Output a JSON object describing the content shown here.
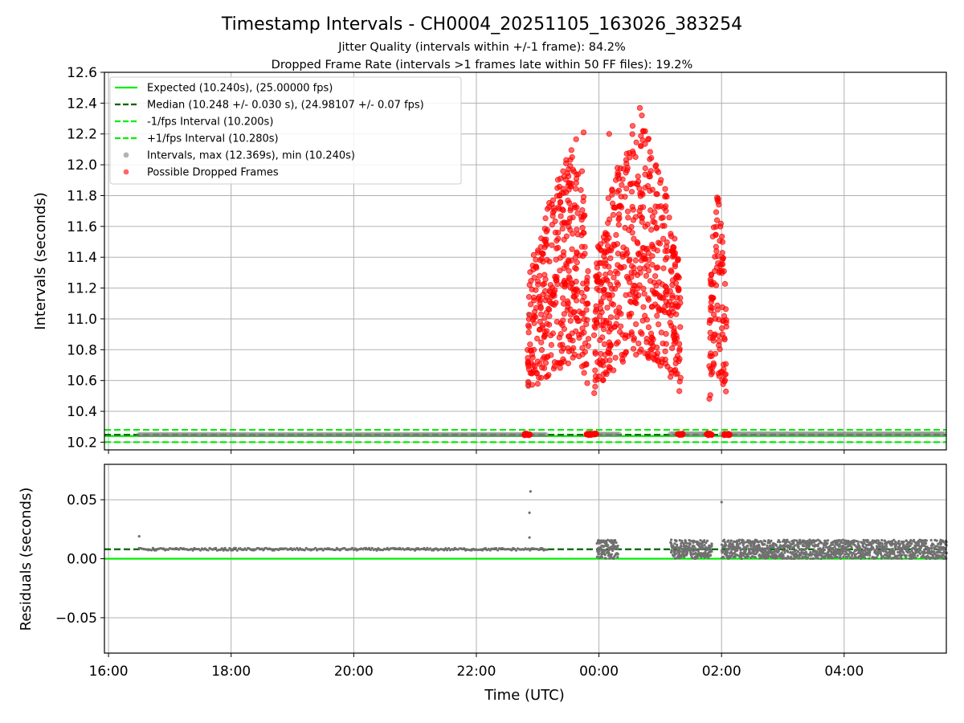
{
  "chart_data": [
    {
      "type": "scatter",
      "title": "Timestamp Intervals - CH0004_20251105_163026_383254",
      "subtitle_lines": [
        "Jitter Quality (intervals within +/-1 frame): 84.2%",
        "Dropped Frame Rate (intervals >1 frames late within 50 FF files): 19.2%"
      ],
      "xlabel": "",
      "ylabel": "Intervals (seconds)",
      "x_axis_type": "time",
      "xlim": [
        "15:56",
        "05:40"
      ],
      "x_ticks": [
        "16:00",
        "18:00",
        "20:00",
        "22:00",
        "00:00",
        "02:00",
        "04:00"
      ],
      "ylim": [
        10.15,
        12.6
      ],
      "y_ticks": [
        "10.2",
        "10.4",
        "10.6",
        "10.8",
        "11.0",
        "11.2",
        "11.4",
        "11.6",
        "11.8",
        "12.0",
        "12.2",
        "12.4",
        "12.6"
      ],
      "grid": true,
      "legend_position": "upper-left",
      "reference_lines": [
        {
          "name": "Expected (10.240s), (25.00000 fps)",
          "y": 10.24,
          "color": "#00ee00",
          "style": "solid"
        },
        {
          "name": "Median (10.248 +/- 0.030 s), (24.98107 +/- 0.07 fps)",
          "y": 10.248,
          "color": "#006400",
          "style": "dashed"
        },
        {
          "name": "-1/fps Interval (10.200s)",
          "y": 10.2,
          "color": "#00ee00",
          "style": "dashed"
        },
        {
          "name": "+1/fps Interval (10.280s)",
          "y": 10.28,
          "color": "#00ee00",
          "style": "dashed"
        }
      ],
      "series": [
        {
          "name": "Intervals, max (12.369s), min (10.240s)",
          "color": "#808080",
          "segments": [
            {
              "x_start": "16:30",
              "x_end": "23:10",
              "y": 10.249
            },
            {
              "x_start": "00:00",
              "x_end": "00:20",
              "y": 10.252
            },
            {
              "x_start": "01:10",
              "x_end": "01:50",
              "y": 10.254
            },
            {
              "x_start": "02:00",
              "x_end": "05:40",
              "y": 10.254
            }
          ],
          "points": [
            {
              "x": "22:51",
              "y": 11.03
            },
            {
              "x": "22:51",
              "y": 10.56
            },
            {
              "x": "22:51",
              "y": 10.59
            },
            {
              "x": "01:50",
              "y": 10.66
            }
          ]
        },
        {
          "name": "Possible Dropped Frames",
          "color": "#ff0000",
          "clusters": [
            {
              "x_start": "22:50",
              "x_end": "23:50",
              "y_peak": 12.2,
              "y_base": 10.25,
              "peak_at": "23:40"
            },
            {
              "x_start": "23:55",
              "x_end": "01:20",
              "y_peak": 12.37,
              "y_base": 10.25,
              "peak_at": "00:40"
            },
            {
              "x_start": "01:48",
              "x_end": "02:05",
              "y_peak": 11.88,
              "y_base": 10.25,
              "peak_at": "01:55"
            }
          ],
          "points": [
            {
              "x": "00:40",
              "y": 12.369
            },
            {
              "x": "00:42",
              "y": 12.32
            },
            {
              "x": "00:10",
              "y": 12.2
            },
            {
              "x": "23:45",
              "y": 12.21
            }
          ]
        }
      ]
    },
    {
      "type": "scatter",
      "title": "",
      "xlabel": "Time (UTC)",
      "ylabel": "Residuals (seconds)",
      "x_axis_type": "time",
      "xlim": [
        "15:56",
        "05:40"
      ],
      "x_ticks": [
        "16:00",
        "18:00",
        "20:00",
        "22:00",
        "00:00",
        "02:00",
        "04:00"
      ],
      "ylim": [
        -0.08,
        0.08
      ],
      "y_ticks": [
        "−0.05",
        "0.00",
        "0.05"
      ],
      "y_tick_values": [
        -0.05,
        0.0,
        0.05
      ],
      "grid": true,
      "reference_lines": [
        {
          "name": "Expected",
          "y": 0.0,
          "color": "#00ee00",
          "style": "solid"
        },
        {
          "name": "Median",
          "y": 0.008,
          "color": "#006400",
          "style": "dashed"
        }
      ],
      "series": [
        {
          "name": "Residuals",
          "color": "#707070",
          "bands": [
            {
              "x_start": "16:30",
              "x_end": "23:10",
              "y_low": 0.007,
              "y_high": 0.009
            },
            {
              "x_start": "23:58",
              "x_end": "00:18",
              "y_low": 0.0,
              "y_high": 0.016
            },
            {
              "x_start": "01:10",
              "x_end": "01:50",
              "y_low": 0.0,
              "y_high": 0.016
            },
            {
              "x_start": "02:00",
              "x_end": "05:40",
              "y_low": 0.0,
              "y_high": 0.016
            }
          ],
          "points": [
            {
              "x": "16:30",
              "y": 0.019
            },
            {
              "x": "22:52",
              "y": 0.039
            },
            {
              "x": "22:53",
              "y": 0.057
            },
            {
              "x": "02:00",
              "y": 0.048
            },
            {
              "x": "22:52",
              "y": 0.018
            }
          ]
        }
      ]
    }
  ]
}
